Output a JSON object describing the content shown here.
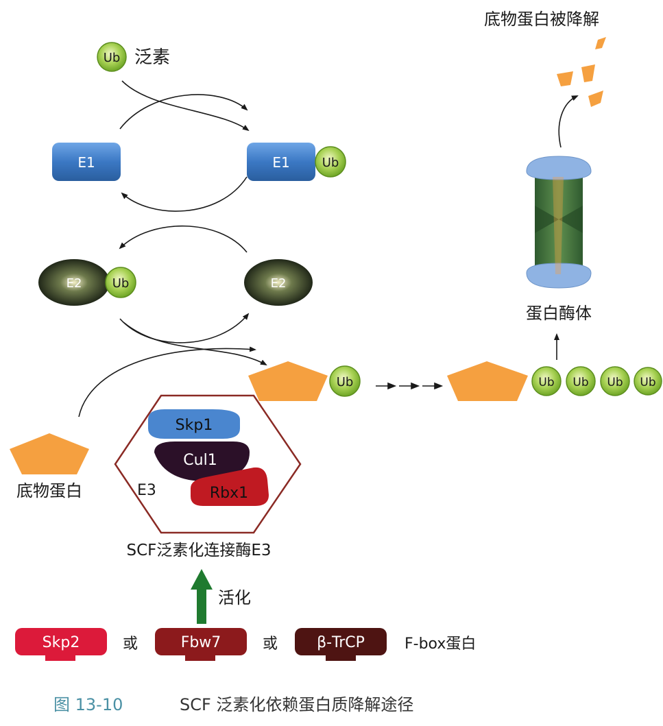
{
  "labels": {
    "ub": "Ub",
    "ub_name": "泛素",
    "e1": "E1",
    "e2": "E2",
    "e3": "E3",
    "skp1": "Skp1",
    "cul1": "Cul1",
    "rbx1": "Rbx1",
    "substrate": "底物蛋白",
    "scf_name": "SCF泛素化连接酶E3",
    "activate": "活化",
    "skp2": "Skp2",
    "or_1": "或",
    "fbw7": "Fbw7",
    "or_2": "或",
    "btrcp": "β-TrCP",
    "fbox": "F-box蛋白",
    "proteasome": "蛋白酶体",
    "degraded": "底物蛋白被降解"
  },
  "caption": {
    "number": "图 13-10",
    "title": "SCF 泛素化依赖蛋白质降解途径"
  },
  "colors": {
    "e1_blue": "#3b78c4",
    "e2_dark": "#1e2a18",
    "ub_green": "#9fcd45",
    "substrate_orange": "#f5a040",
    "skp1_blue": "#4a86cf",
    "cul1_dark": "#2b1028",
    "rbx1_red": "#c01a22",
    "hexagon_red": "#8a2a24",
    "skp2_red": "#dc1a3a",
    "fbw7_red": "#8c1a1c",
    "btrcp_brown": "#4e1412",
    "activate_green": "#1f7a2f",
    "proteasome_blue": "#8fb3e3",
    "proteasome_green": "#3a6b3a",
    "caption_blue": "#4a90a4"
  }
}
